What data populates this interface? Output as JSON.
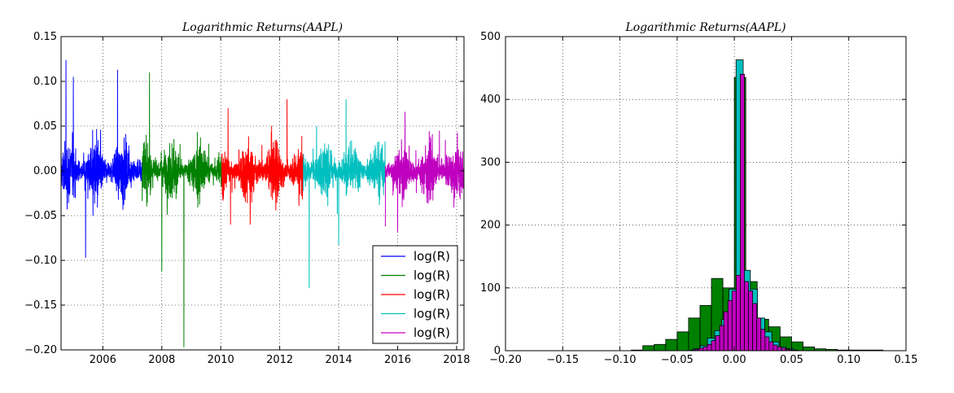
{
  "chart_data": [
    {
      "type": "line",
      "title": "Logarithmic Returns(AAPL)",
      "xlabel": "",
      "ylabel": "",
      "xlim": [
        "2004-08-01",
        "2018-04-01"
      ],
      "ylim": [
        -0.2,
        0.15
      ],
      "x_ticks": [
        "2006",
        "2008",
        "2010",
        "2012",
        "2014",
        "2016",
        "2018"
      ],
      "y_ticks": [
        "0.15",
        "0.10",
        "0.05",
        "0.00",
        "−0.05",
        "−0.10",
        "−0.15",
        "−0.20"
      ],
      "grid": true,
      "legend_position": "lower right",
      "series": [
        {
          "name": "log(R)",
          "color": "#0000ff",
          "start": "2004-08-01",
          "end": "2007-05-01",
          "peaks": [
            [
              "2004-10",
              0.124
            ],
            [
              "2005-01",
              0.105
            ],
            [
              "2006-07",
              0.113
            ],
            [
              "2005-06",
              -0.097
            ],
            [
              "2005-09",
              -0.05
            ]
          ]
        },
        {
          "name": "log(R)",
          "color": "#008000",
          "start": "2007-05-01",
          "end": "2010-01-15",
          "peaks": [
            [
              "2008-10",
              0.13
            ],
            [
              "2008-10",
              -0.197
            ],
            [
              "2008-01",
              -0.112
            ],
            [
              "2007-08",
              0.11
            ]
          ]
        },
        {
          "name": "log(R)",
          "color": "#ff0000",
          "start": "2010-01-15",
          "end": "2012-10-20",
          "peaks": [
            [
              "2010-04",
              0.07
            ],
            [
              "2012-04",
              0.08
            ],
            [
              "2010-05",
              -0.06
            ],
            [
              "2011-01",
              -0.06
            ]
          ]
        },
        {
          "name": "log(R)",
          "color": "#00bfbf",
          "start": "2012-10-20",
          "end": "2015-08-01",
          "peaks": [
            [
              "2013-01",
              -0.131
            ],
            [
              "2014-01",
              -0.083
            ],
            [
              "2013-04",
              0.05
            ],
            [
              "2014-04",
              0.08
            ]
          ]
        },
        {
          "name": "log(R)",
          "color": "#bf00bf",
          "start": "2015-08-01",
          "end": "2018-04-01",
          "peaks": [
            [
              "2015-08",
              -0.062
            ],
            [
              "2016-01",
              -0.068
            ],
            [
              "2016-04",
              0.066
            ],
            [
              "2017-06",
              0.045
            ]
          ]
        }
      ]
    },
    {
      "type": "bar",
      "title": "Logarithmic Returns(AAPL)",
      "xlabel": "",
      "ylabel": "",
      "xlim": [
        -0.2,
        0.15
      ],
      "ylim": [
        0,
        500
      ],
      "x_ticks": [
        "−0.20",
        "−0.15",
        "−0.10",
        "−0.05",
        "0.00",
        "0.05",
        "0.10",
        "0.15"
      ],
      "y_ticks": [
        "500",
        "400",
        "300",
        "200",
        "100",
        "0"
      ],
      "grid": true,
      "series": [
        {
          "name": "",
          "color": "#008000",
          "bin_start": -0.09,
          "bin_width": 0.01,
          "counts": [
            1,
            8,
            10,
            18,
            30,
            52,
            72,
            115,
            100,
            435,
            110,
            50,
            38,
            22,
            14,
            6,
            3,
            2,
            1,
            1,
            1,
            1
          ]
        },
        {
          "name": "",
          "color": "#00bfbf",
          "bin_start": -0.036,
          "bin_width": 0.00625,
          "counts": [
            3,
            8,
            20,
            32,
            50,
            98,
            463,
            128,
            98,
            52,
            30,
            14,
            6,
            3
          ]
        },
        {
          "name": "",
          "color": "#bf00bf",
          "bin_start": -0.038,
          "bin_width": 0.0036,
          "counts": [
            1,
            2,
            4,
            6,
            10,
            16,
            24,
            40,
            62,
            80,
            95,
            120,
            440,
            110,
            95,
            75,
            52,
            34,
            22,
            14,
            9,
            6,
            4,
            2,
            1,
            1
          ]
        }
      ]
    }
  ]
}
